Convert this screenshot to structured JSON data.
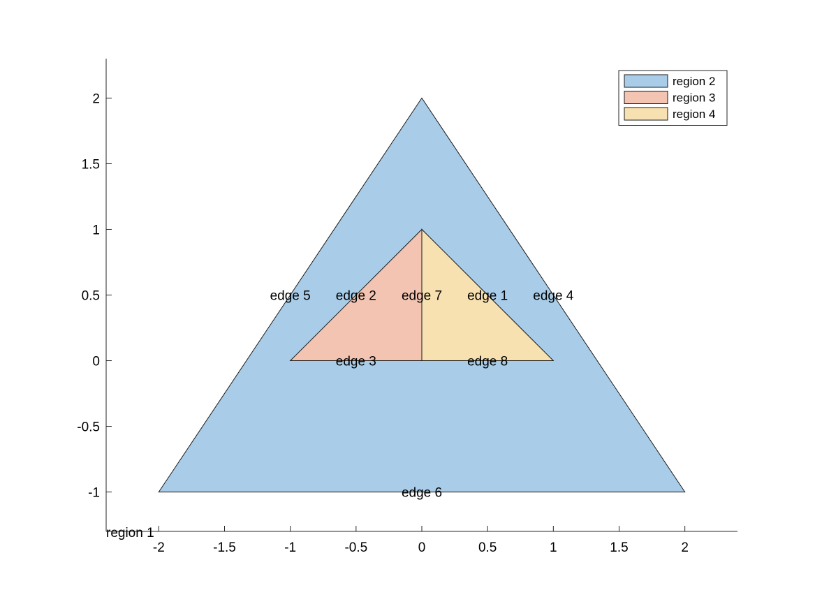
{
  "chart_data": {
    "type": "area",
    "title": "",
    "xlabel": "",
    "ylabel": "",
    "xlim": [
      -2.4,
      2.4
    ],
    "ylim": [
      -1.3,
      2.3
    ],
    "grid": false,
    "legend_placement": "top-right",
    "x_ticks": [
      {
        "value": -2,
        "label": "-2"
      },
      {
        "value": -1.5,
        "label": "-1.5"
      },
      {
        "value": -1,
        "label": "-1"
      },
      {
        "value": -0.5,
        "label": "-0.5"
      },
      {
        "value": 0,
        "label": "0"
      },
      {
        "value": 0.5,
        "label": "0.5"
      },
      {
        "value": 1,
        "label": "1"
      },
      {
        "value": 1.5,
        "label": "1.5"
      },
      {
        "value": 2,
        "label": "2"
      }
    ],
    "y_ticks": [
      {
        "value": -1,
        "label": "-1"
      },
      {
        "value": -0.5,
        "label": "-0.5"
      },
      {
        "value": 0,
        "label": "0"
      },
      {
        "value": 0.5,
        "label": "0.5"
      },
      {
        "value": 1,
        "label": "1"
      },
      {
        "value": 1.5,
        "label": "1.5"
      },
      {
        "value": 2,
        "label": "2"
      }
    ],
    "regions": [
      {
        "name": "region 2",
        "color": "#a9cde8",
        "vertices": [
          [
            -2,
            -1
          ],
          [
            2,
            -1
          ],
          [
            0,
            2
          ]
        ]
      },
      {
        "name": "region 3",
        "color": "#f2c4b1",
        "vertices": [
          [
            -1,
            0
          ],
          [
            0,
            0
          ],
          [
            0,
            1
          ]
        ]
      },
      {
        "name": "region 4",
        "color": "#f8e1b0",
        "vertices": [
          [
            0,
            0
          ],
          [
            1,
            0
          ],
          [
            0,
            1
          ]
        ]
      }
    ],
    "edge_labels": [
      {
        "label": "edge 1",
        "x": 0.5,
        "y": 0.5
      },
      {
        "label": "edge 2",
        "x": -0.5,
        "y": 0.5
      },
      {
        "label": "edge 3",
        "x": -0.5,
        "y": 0
      },
      {
        "label": "edge 4",
        "x": 1,
        "y": 0.5
      },
      {
        "label": "edge 5",
        "x": -1,
        "y": 0.5
      },
      {
        "label": "edge 6",
        "x": 0,
        "y": -1
      },
      {
        "label": "edge 7",
        "x": 0,
        "y": 0.5
      },
      {
        "label": "edge 8",
        "x": 0.5,
        "y": 0
      }
    ],
    "region_labels": [
      {
        "label": "region 1",
        "x": -2.4,
        "y": -1.3
      }
    ]
  }
}
